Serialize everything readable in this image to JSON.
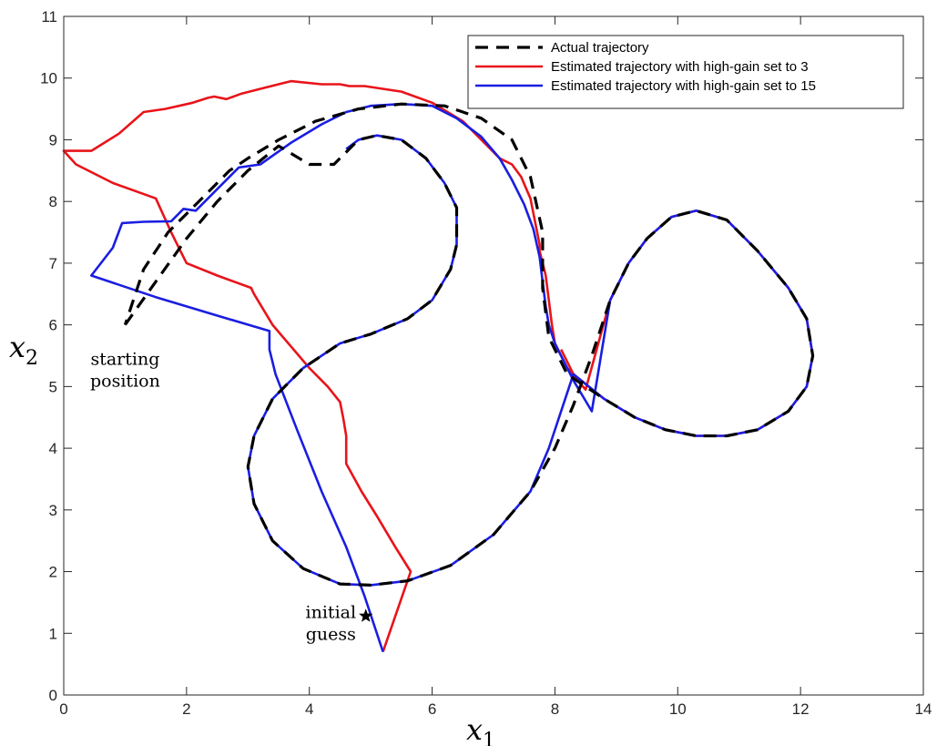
{
  "chart_data": {
    "type": "line",
    "title": "",
    "xlabel": "x",
    "xlabel_sub": "1",
    "ylabel": "x",
    "ylabel_sub": "2",
    "xlim": [
      0,
      14
    ],
    "ylim": [
      0,
      11
    ],
    "xticks": [
      0,
      2,
      4,
      6,
      8,
      10,
      12,
      14
    ],
    "yticks": [
      0,
      1,
      2,
      3,
      4,
      5,
      6,
      7,
      8,
      9,
      10,
      11
    ],
    "grid": false,
    "legend_position": "top-right",
    "series": [
      {
        "name": "Actual trajectory",
        "color": "#000000",
        "style": "dashed",
        "x": [
          1.0,
          1.5,
          2.0,
          2.5,
          3.0,
          3.5,
          4.0,
          4.4,
          4.6,
          4.8,
          5.1,
          5.5,
          5.9,
          6.2,
          6.4,
          6.4,
          6.3,
          6.0,
          5.6,
          5.0,
          4.5,
          3.9,
          3.4,
          3.1,
          3.0,
          3.1,
          3.4,
          3.9,
          4.5,
          5.0,
          5.6,
          6.3,
          7.0,
          7.6,
          8.0,
          8.3,
          8.6,
          8.9,
          9.2,
          9.5,
          9.9,
          10.3,
          10.8,
          11.3,
          11.8,
          12.1,
          12.2,
          12.1,
          11.8,
          11.3,
          10.8,
          10.3,
          9.8,
          9.3,
          8.8,
          8.2,
          7.9,
          7.8,
          7.8,
          7.6,
          7.3,
          6.8,
          6.2,
          5.5,
          4.8,
          4.1,
          3.5,
          3.0,
          2.7,
          2.5,
          2.3,
          2.0,
          1.7,
          1.3,
          1.0
        ],
        "y": [
          6.0,
          6.7,
          7.4,
          8.0,
          8.5,
          8.9,
          8.6,
          8.6,
          8.8,
          9.0,
          9.07,
          9.0,
          8.7,
          8.3,
          7.9,
          7.3,
          6.9,
          6.4,
          6.1,
          5.85,
          5.7,
          5.3,
          4.8,
          4.2,
          3.7,
          3.1,
          2.5,
          2.05,
          1.8,
          1.78,
          1.85,
          2.1,
          2.6,
          3.3,
          4.0,
          4.7,
          5.5,
          6.4,
          7.0,
          7.4,
          7.75,
          7.85,
          7.7,
          7.2,
          6.6,
          6.1,
          5.5,
          5.0,
          4.6,
          4.3,
          4.2,
          4.2,
          4.3,
          4.5,
          4.8,
          5.2,
          5.8,
          6.6,
          7.5,
          8.4,
          9.0,
          9.35,
          9.55,
          9.58,
          9.5,
          9.3,
          9.0,
          8.7,
          8.5,
          8.3,
          8.1,
          7.8,
          7.5,
          6.9,
          6.0
        ]
      },
      {
        "name": "Estimated trajectory with high-gain set to 3",
        "color": "#e8141a",
        "style": "solid",
        "x": [
          5.2,
          5.65,
          5.4,
          5.1,
          4.85,
          4.6,
          4.6,
          4.55,
          4.5,
          4.3,
          4.0,
          3.7,
          3.4,
          3.1,
          3.05,
          2.5,
          2.0,
          1.9,
          1.75,
          1.5,
          0.8,
          0.2,
          0.0,
          0.45,
          0.9,
          1.3,
          1.65,
          2.1,
          2.35,
          2.45,
          2.65,
          2.9,
          3.3,
          3.7,
          4.2,
          4.5,
          4.65,
          4.9,
          5.5,
          6.0,
          6.5,
          6.9,
          7.1,
          7.3,
          7.45,
          7.6,
          7.75,
          7.75,
          7.85,
          7.9,
          7.95,
          8.0,
          8.05,
          8.2,
          8.5,
          8.9,
          9.2,
          9.5,
          9.9,
          10.3,
          10.8,
          11.3,
          11.8,
          12.1,
          12.2,
          12.1,
          11.8,
          11.3,
          10.8,
          10.3,
          9.8,
          9.3,
          8.8,
          8.3,
          8.1
        ],
        "y": [
          0.7,
          2.0,
          2.4,
          2.9,
          3.3,
          3.75,
          4.2,
          4.5,
          4.75,
          5.0,
          5.3,
          5.65,
          6.0,
          6.5,
          6.6,
          6.8,
          7.0,
          7.2,
          7.5,
          8.05,
          8.3,
          8.6,
          8.82,
          8.82,
          9.1,
          9.45,
          9.5,
          9.6,
          9.68,
          9.7,
          9.66,
          9.75,
          9.85,
          9.95,
          9.9,
          9.9,
          9.87,
          9.87,
          9.78,
          9.6,
          9.3,
          8.9,
          8.7,
          8.6,
          8.4,
          8.05,
          7.3,
          7.2,
          6.8,
          6.4,
          6.0,
          5.7,
          5.6,
          5.3,
          4.95,
          6.4,
          7.0,
          7.4,
          7.75,
          7.85,
          7.7,
          7.2,
          6.6,
          6.1,
          5.5,
          5.0,
          4.6,
          4.3,
          4.2,
          4.2,
          4.3,
          4.5,
          4.8,
          5.2,
          5.6
        ]
      },
      {
        "name": "Estimated trajectory with high-gain set to 15",
        "color": "#1a1ee0",
        "style": "solid",
        "x": [
          5.2,
          4.9,
          4.6,
          4.2,
          3.8,
          3.45,
          3.35,
          3.35,
          2.5,
          1.5,
          0.45,
          0.8,
          0.95,
          1.3,
          1.75,
          1.95,
          2.15,
          2.5,
          2.85,
          3.2,
          3.7,
          4.2,
          4.6,
          5.0,
          5.5,
          6.0,
          6.4,
          6.8,
          7.1,
          7.3,
          7.5,
          7.65,
          7.75,
          7.8,
          7.85,
          7.9,
          8.0,
          8.3,
          8.6,
          8.9,
          9.2,
          9.5,
          9.9,
          10.3,
          10.8,
          11.3,
          11.8,
          12.1,
          12.2,
          12.1,
          11.8,
          11.3,
          10.8,
          10.3,
          9.8,
          9.3,
          8.8,
          8.3,
          7.9,
          7.6,
          7.0,
          6.3,
          5.6,
          5.0,
          4.5,
          3.9,
          3.4,
          3.1,
          3.0,
          3.1,
          3.4,
          3.9,
          4.5,
          5.0,
          5.6,
          6.0,
          6.3,
          6.4,
          6.4,
          6.2,
          5.9,
          5.5,
          5.1,
          4.8,
          4.6
        ],
        "y": [
          0.7,
          1.6,
          2.4,
          3.3,
          4.3,
          5.2,
          5.6,
          5.9,
          6.15,
          6.45,
          6.8,
          7.25,
          7.65,
          7.67,
          7.68,
          7.88,
          7.85,
          8.2,
          8.55,
          8.6,
          8.95,
          9.25,
          9.45,
          9.55,
          9.58,
          9.55,
          9.35,
          9.05,
          8.7,
          8.35,
          7.95,
          7.55,
          7.1,
          6.7,
          6.3,
          6.0,
          5.7,
          5.1,
          4.6,
          6.4,
          7.0,
          7.4,
          7.75,
          7.85,
          7.7,
          7.2,
          6.6,
          6.1,
          5.5,
          5.0,
          4.6,
          4.3,
          4.2,
          4.2,
          4.3,
          4.5,
          4.8,
          5.2,
          4.0,
          3.3,
          2.6,
          2.1,
          1.85,
          1.78,
          1.8,
          2.05,
          2.5,
          3.1,
          3.7,
          4.2,
          4.8,
          5.3,
          5.7,
          5.85,
          6.1,
          6.4,
          6.9,
          7.3,
          7.9,
          8.3,
          8.7,
          9.0,
          9.07,
          9.0,
          8.85
        ]
      }
    ],
    "annotations": [
      {
        "lines": [
          "starting",
          "position"
        ],
        "x": 1.0,
        "y": 5.35,
        "anchor": "middle"
      },
      {
        "lines": [
          "initial",
          "guess"
        ],
        "x": 4.35,
        "y": 1.25,
        "anchor": "middle"
      }
    ],
    "marker": {
      "name": "initial-guess-marker",
      "shape": "star",
      "x": 4.92,
      "y": 1.28,
      "color": "#000000"
    }
  }
}
